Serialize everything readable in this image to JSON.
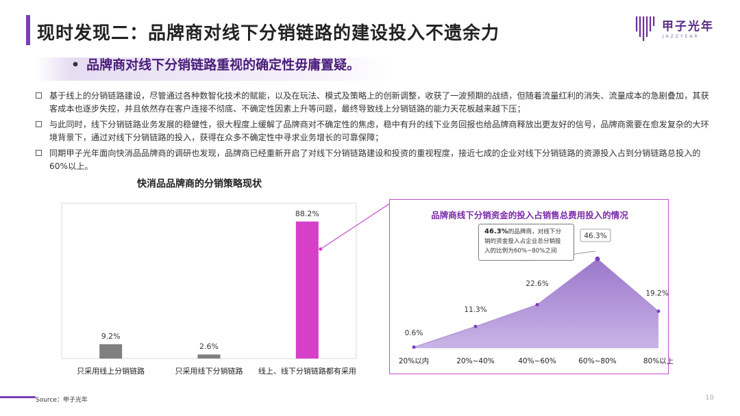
{
  "header": {
    "title": "现时发现二：品牌商对线下分销链路的建设投入不遗余力",
    "brand_name": "甲子光年",
    "brand_sub": "JAZZYEAR"
  },
  "subtitle": {
    "bullet": "•",
    "text": "品牌商对线下分销链路重视的确定性毋庸置疑。"
  },
  "bullets": [
    "基于线上的分销链路建设，尽管通过各种数智化技术的赋能，以及在玩法、模式及策略上的创新调整，收获了一波预期的战绩，但随着流量红利的消失、流量成本的急剧叠加，其获客成本也逐步失控，并且依然存在客户连接不彻底、不确定性因素上升等问题，最终导致线上分销链路的能力天花板越来越下压；",
    "与此同时，线下分销链路业务发展的稳健性，很大程度上缓解了品牌商对不确定性的焦虑，稳中有升的线下业务回报也给品牌商释放出更友好的信号，品牌商需要在愈发复杂的大环境背景下，通过对线下分销链路的投入，获得在众多不确定性中寻求业务增长的可靠保障；",
    "同期甲子光年面向快消品品牌商的调研也发现，品牌商已经重新开启了对线下分销链路建设和投资的重视程度，接近七成的企业对线下分销链路的资源投入占到分销链路总投入的60%以上。"
  ],
  "chart_data": [
    {
      "type": "bar",
      "title": "快消品品牌商的分销策略现状",
      "categories": [
        "只采用线上分销链路",
        "只采用线下分销链路",
        "线上、线下分销链路都有采用"
      ],
      "values": [
        9.2,
        2.6,
        88.2
      ],
      "value_labels": [
        "9.2%",
        "2.6%",
        "88.2%"
      ],
      "colors": [
        "#7f7f7f",
        "#7f7f7f",
        "#d63fc7"
      ],
      "ylim": [
        0,
        100
      ],
      "grid": false
    },
    {
      "type": "area",
      "title": "品牌商线下分销资金的投入占销售总费用投入的情况",
      "categories": [
        "20%以内",
        "20%~40%",
        "40%~60%",
        "60%~80%",
        "80%以上"
      ],
      "values": [
        0.6,
        11.3,
        22.6,
        46.3,
        19.2
      ],
      "value_labels": [
        "0.6%",
        "11.3%",
        "22.6%",
        "46.3%",
        "19.2%"
      ],
      "ylim": [
        0,
        50
      ],
      "fill_color": "#a98ad0",
      "marker_color": "#7a3fbf",
      "annotation": {
        "bold": "46.3%",
        "line1": "的品牌商，对线下分",
        "line2": "销的资金投入占企业总分销投",
        "line3": "入的比例为60%~80%之间"
      }
    }
  ],
  "footer": {
    "source": "Source：甲子光年",
    "page": "10"
  },
  "colors": {
    "accent": "#7b3fb3",
    "magenta": "#d63fc7",
    "panel_border": "#c04bcf"
  }
}
